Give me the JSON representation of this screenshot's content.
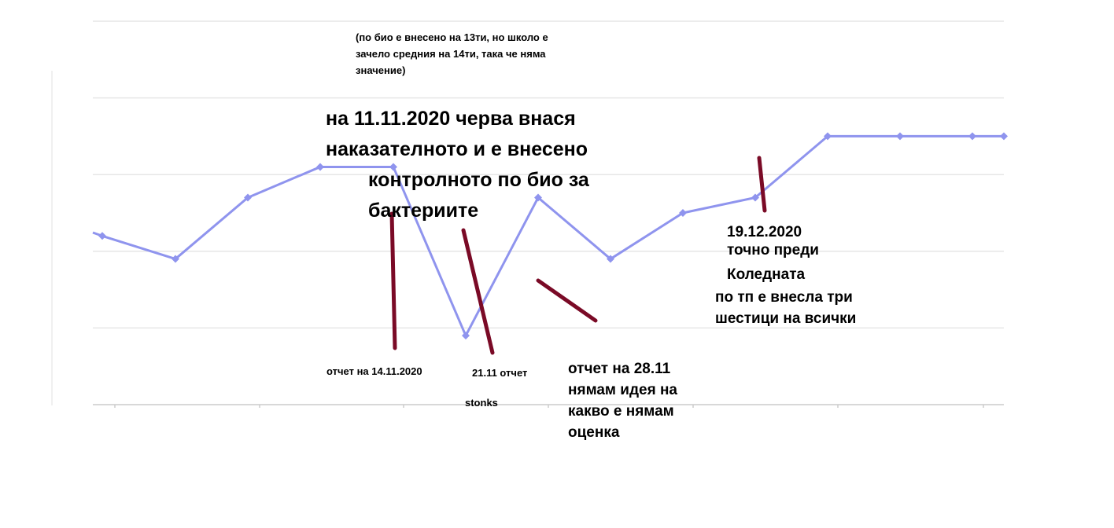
{
  "chart_data": {
    "type": "line",
    "title": "",
    "xlabel": "",
    "ylabel": "",
    "grid": true,
    "legend": "none",
    "series": [
      {
        "color": "#8f94ee",
        "values": [
          4.2,
          3.9,
          4.7,
          5.1,
          5.1,
          2.9,
          4.7,
          3.9,
          4.5,
          4.7,
          5.5,
          5.5,
          5.5,
          5.5
        ]
      }
    ],
    "ylim": [
      2.0,
      7.0
    ],
    "gridlines": [
      3.0,
      4.0,
      5.0,
      6.0,
      7.0
    ]
  },
  "annotations": {
    "note_bio_lines": [
      "(по био е внесено на 13ти, но школо е",
      "зачело средния на 14ти, така че няма",
      "значение)"
    ],
    "note_11_11_lines": [
      "на 11.11.2020 черва внася",
      "наказателното и е внесено",
      "контролното по био за",
      "бактериите"
    ],
    "label_14_11": "отчет на 14.11.2020",
    "label_21_11": "21.11 отчет",
    "label_stonks": "stonks",
    "note_28_11_lines": [
      "отчет на 28.11",
      "нямам идея на",
      "какво е нямам",
      "оценка"
    ],
    "note_19_12_lines": [
      "19.12.2020",
      "точно преди",
      "Коледната"
    ],
    "note_tp_lines": [
      "по тп е внесла три",
      "шестици на всички"
    ]
  },
  "colors": {
    "line": "#8f94ee",
    "marker": "#8f94ee",
    "grid": "#e6e6e6",
    "axis": "#cccccc",
    "pen": "#7a0a26"
  }
}
